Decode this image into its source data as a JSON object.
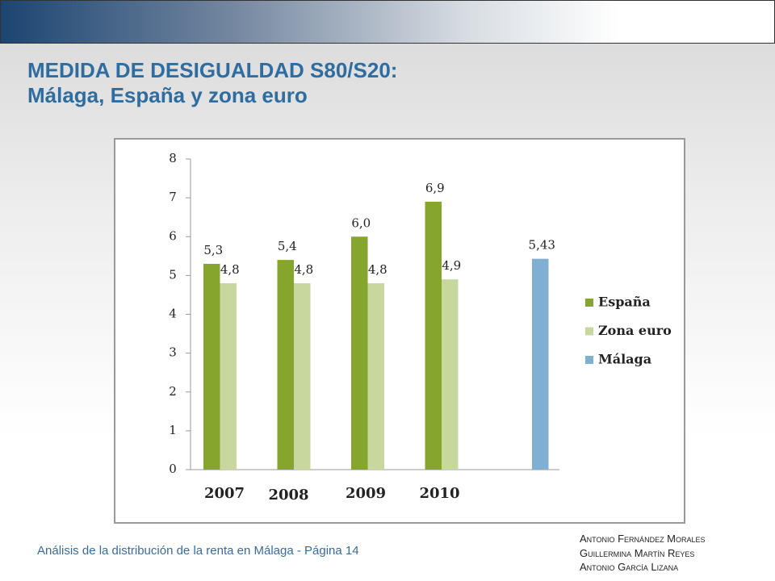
{
  "header": {
    "title": "MEDIDA DE DESIGUALDAD S80/S20:",
    "subtitle": "Málaga, España y zona euro"
  },
  "chart_data": {
    "type": "bar",
    "categories": [
      "2007",
      "2008",
      "2009",
      "2010",
      null
    ],
    "series": [
      {
        "name": "España",
        "color": "#86a52c",
        "values": [
          5.3,
          5.4,
          6.0,
          6.9,
          null
        ],
        "value_labels": [
          "5,3",
          "5,4",
          "6,0",
          "6,9",
          null
        ]
      },
      {
        "name": "Zona euro",
        "color": "#c8d79e",
        "values": [
          4.8,
          4.8,
          4.8,
          4.9,
          null
        ],
        "value_labels": [
          "4,8",
          "4,8",
          "4,8",
          "4,9",
          null
        ]
      },
      {
        "name": "Málaga",
        "color": "#7fb0d1",
        "values": [
          null,
          null,
          null,
          null,
          5.43
        ],
        "value_labels": [
          null,
          null,
          null,
          null,
          "5,43"
        ]
      }
    ],
    "ylim": [
      0,
      8
    ],
    "yticks": [
      0,
      1,
      2,
      3,
      4,
      5,
      6,
      7,
      8
    ],
    "grid": false,
    "legend": "right"
  },
  "footer": {
    "text": "Análisis de la distribución de la renta en Málaga  -  Página 14",
    "authors": [
      "Antonio Fernández Morales",
      "Guillermina Martín Reyes",
      "Antonio García Lizana"
    ]
  }
}
